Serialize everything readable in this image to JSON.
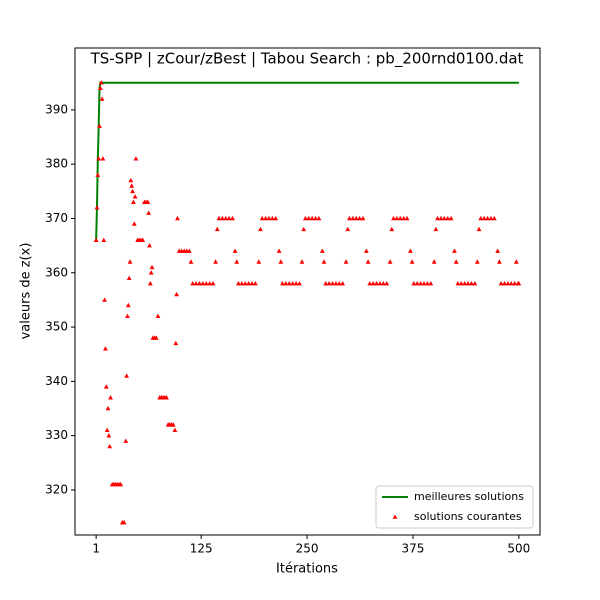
{
  "chart_data": {
    "type": "line",
    "title": "TS-SPP | zCour/zBest | Tabou Search : pb_200rnd0100.dat",
    "x_label": "Itérations",
    "y_label": "valeurs de z(x)",
    "xlim": [
      -23.95,
      524.95
    ],
    "xticks": [
      1,
      125,
      250,
      375,
      500
    ],
    "ylim": [
      311.7,
      401.4
    ],
    "yticks": [
      320,
      330,
      340,
      350,
      360,
      370,
      380,
      390
    ],
    "legend": "lower right",
    "series": [
      {
        "name": "meilleures solutions",
        "type": "line",
        "color": "#008000",
        "x": [
          1,
          2,
          3,
          4,
          5,
          6,
          500
        ],
        "values": [
          366,
          372,
          381,
          387,
          394,
          395,
          395
        ]
      },
      {
        "name": "solutions courantes",
        "type": "scatter",
        "color": "#ff0000",
        "x": [
          1,
          2,
          3,
          4,
          5,
          6,
          7,
          8,
          9,
          10,
          11,
          12,
          13,
          14,
          15,
          16,
          17,
          18,
          20,
          22,
          24,
          26,
          28,
          30,
          32,
          34,
          36,
          37,
          38,
          39,
          40,
          41,
          42,
          43,
          44,
          45,
          46,
          47,
          48,
          50,
          52,
          54,
          56,
          58,
          60,
          62,
          63,
          64,
          65,
          66,
          67,
          68,
          70,
          72,
          74,
          76,
          78,
          80,
          82,
          84,
          86,
          88,
          90,
          92,
          94,
          95,
          96,
          97,
          99,
          102,
          105,
          108,
          111,
          113,
          115,
          119,
          123,
          127,
          131,
          135,
          139,
          142,
          144,
          146,
          150,
          154,
          158,
          162,
          165,
          167,
          169,
          173,
          177,
          181,
          185,
          189,
          193,
          195,
          197,
          201,
          205,
          209,
          213,
          217,
          219,
          221,
          225,
          229,
          233,
          237,
          241,
          244,
          246,
          248,
          252,
          256,
          260,
          264,
          268,
          270,
          272,
          276,
          280,
          284,
          288,
          292,
          296,
          298,
          300,
          304,
          308,
          312,
          316,
          320,
          322,
          324,
          328,
          332,
          336,
          340,
          344,
          348,
          350,
          352,
          356,
          360,
          364,
          368,
          372,
          374,
          376,
          380,
          384,
          388,
          392,
          396,
          400,
          402,
          404,
          408,
          412,
          416,
          420,
          424,
          426,
          428,
          432,
          436,
          440,
          444,
          448,
          451,
          453,
          455,
          459,
          463,
          467,
          471,
          475,
          477,
          479,
          483,
          487,
          491,
          495,
          497,
          499,
          500
        ],
        "values": [
          366,
          372,
          378,
          381,
          387,
          394,
          395,
          392,
          381,
          366,
          355,
          346,
          339,
          331,
          335,
          330,
          328,
          337,
          321,
          321,
          321,
          321,
          321,
          321,
          314,
          314,
          329,
          341,
          352,
          354,
          359,
          362,
          377,
          376,
          375,
          373,
          369,
          374,
          381,
          366,
          366,
          366,
          366,
          373,
          373,
          373,
          371,
          365,
          358,
          360,
          361,
          348,
          348,
          348,
          352,
          337,
          337,
          337,
          337,
          337,
          332,
          332,
          332,
          332,
          331,
          347,
          356,
          370,
          364,
          364,
          364,
          364,
          364,
          362,
          358,
          358,
          358,
          358,
          358,
          358,
          358,
          362,
          368,
          370,
          370,
          370,
          370,
          370,
          364,
          362,
          358,
          358,
          358,
          358,
          358,
          358,
          362,
          368,
          370,
          370,
          370,
          370,
          370,
          364,
          362,
          358,
          358,
          358,
          358,
          358,
          358,
          362,
          368,
          370,
          370,
          370,
          370,
          370,
          364,
          362,
          358,
          358,
          358,
          358,
          358,
          358,
          362,
          368,
          370,
          370,
          370,
          370,
          370,
          364,
          362,
          358,
          358,
          358,
          358,
          358,
          358,
          362,
          368,
          370,
          370,
          370,
          370,
          370,
          364,
          362,
          358,
          358,
          358,
          358,
          358,
          358,
          362,
          368,
          370,
          370,
          370,
          370,
          370,
          364,
          362,
          358,
          358,
          358,
          358,
          358,
          358,
          362,
          368,
          370,
          370,
          370,
          370,
          370,
          364,
          362,
          358,
          358,
          358,
          358,
          358,
          362,
          358,
          358
        ]
      }
    ]
  }
}
